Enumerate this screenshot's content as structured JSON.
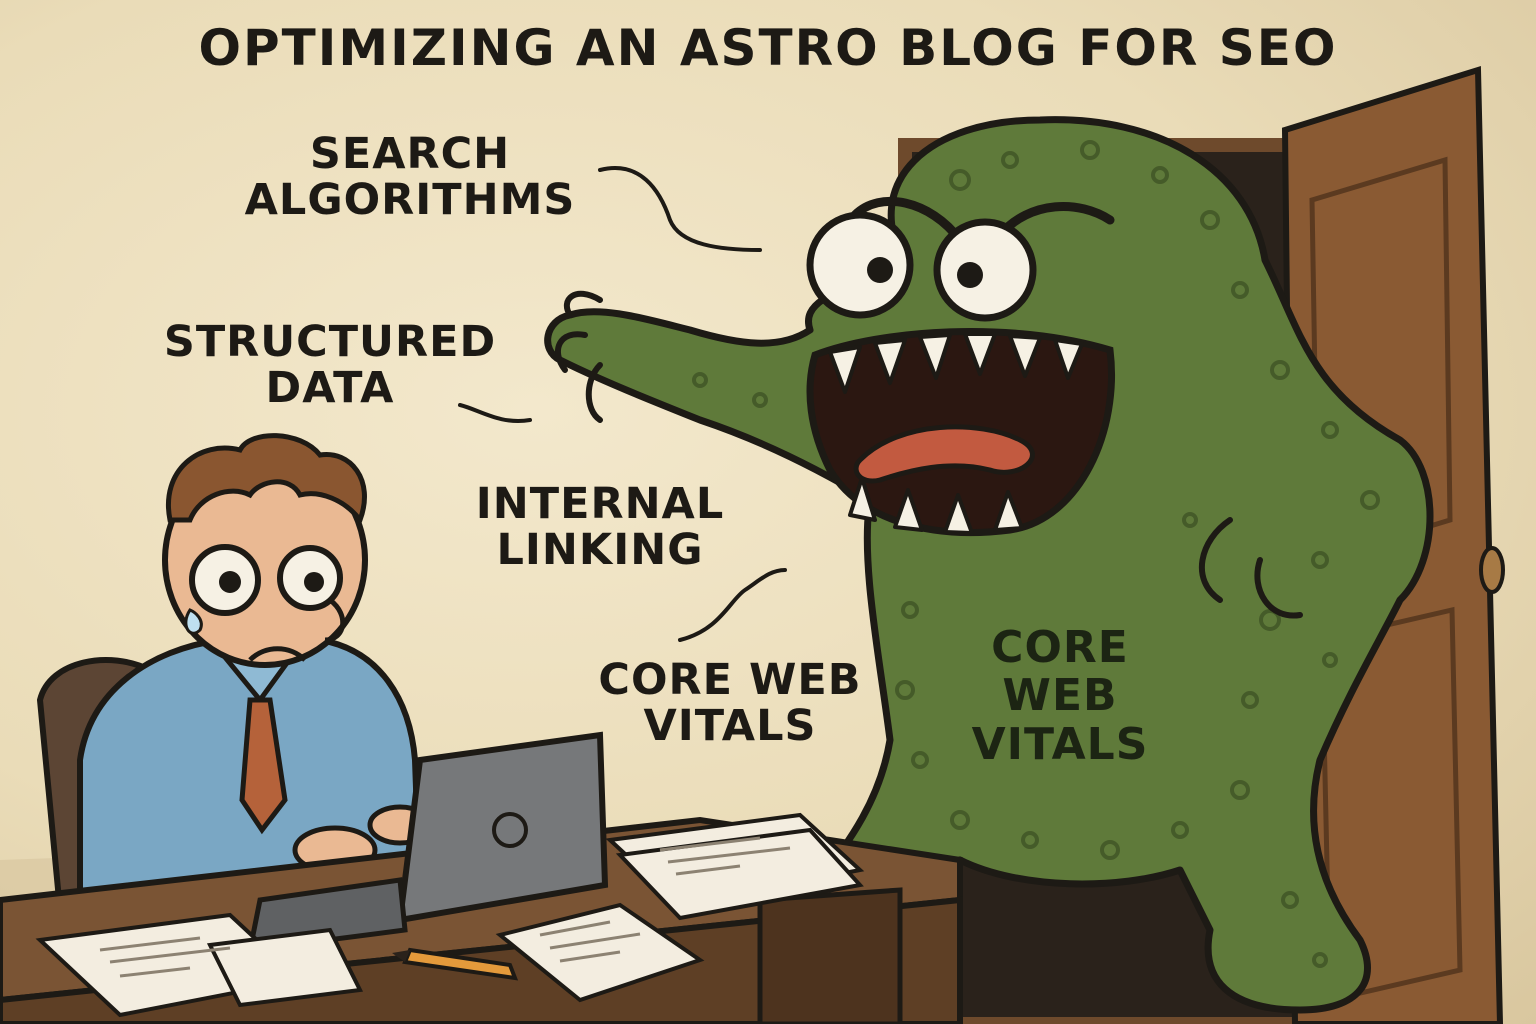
{
  "title": "OPTIMIZING AN ASTRO BLOG FOR SEO",
  "labels": {
    "search": [
      "SEARCH",
      "ALGORITHMS"
    ],
    "structured": [
      "STRUCTURED",
      "DATA"
    ],
    "internal": [
      "INTERNAL",
      "LINKING"
    ],
    "core": [
      "CORE WEB",
      "VITALS"
    ]
  },
  "monster_belly": [
    "CORE",
    "WEB",
    "VITALS"
  ],
  "colors": {
    "background": "#efe3c5",
    "monster": "#5f7a3a",
    "door": "#8a5a33",
    "shirt": "#7aa7c4",
    "tie": "#b5623a",
    "desk": "#7a5434",
    "laptop": "#76787a",
    "ink": "#1d1a15"
  }
}
